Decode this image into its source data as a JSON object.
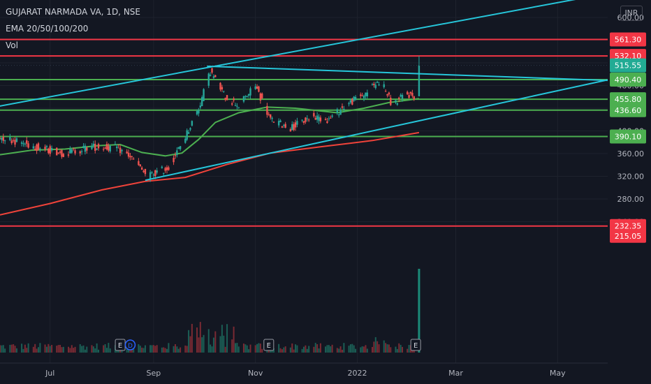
{
  "header": {
    "symbol_line": "GUJARAT NARMADA VA, 1D, NSE",
    "ema_label": "EMA 20/50/100/200",
    "vol_label": "Vol",
    "currency": "INR"
  },
  "chart_data": {
    "type": "candlestick",
    "title": "GUJARAT NARMADA VA, 1D, NSE",
    "start_date": "2021-06-01",
    "end_date": "2022-02-07",
    "x_axis_range": [
      "2021-06-01",
      "2022-05-31"
    ],
    "ylim": [
      212,
      637
    ],
    "y_scale": "linear",
    "grid": true,
    "x_tick_labels": [
      {
        "label": "Jul",
        "date": "2021-07-01"
      },
      {
        "label": "Sep",
        "date": "2021-09-01"
      },
      {
        "label": "Nov",
        "date": "2021-11-01"
      },
      {
        "label": "2022",
        "date": "2022-01-01"
      },
      {
        "label": "Mar",
        "date": "2022-03-01"
      },
      {
        "label": "May",
        "date": "2022-05-01"
      }
    ],
    "y_tick_labels": [
      "600.00",
      "480.00",
      "400.00",
      "360.00",
      "320.00",
      "280.00",
      "240.00"
    ],
    "price_path": [
      {
        "date": "2021-06-01",
        "close": 390
      },
      {
        "date": "2021-06-25",
        "close": 370
      },
      {
        "date": "2021-07-10",
        "close": 360
      },
      {
        "date": "2021-07-25",
        "close": 372
      },
      {
        "date": "2021-08-10",
        "close": 370
      },
      {
        "date": "2021-08-18",
        "close": 355
      },
      {
        "date": "2021-08-28",
        "close": 320
      },
      {
        "date": "2021-09-10",
        "close": 335
      },
      {
        "date": "2021-09-20",
        "close": 390
      },
      {
        "date": "2021-09-28",
        "close": 440
      },
      {
        "date": "2021-10-05",
        "close": 505
      },
      {
        "date": "2021-10-14",
        "close": 460
      },
      {
        "date": "2021-10-22",
        "close": 445
      },
      {
        "date": "2021-11-01",
        "close": 480
      },
      {
        "date": "2021-11-10",
        "close": 420
      },
      {
        "date": "2021-11-22",
        "close": 405
      },
      {
        "date": "2021-12-05",
        "close": 425
      },
      {
        "date": "2021-12-15",
        "close": 420
      },
      {
        "date": "2021-12-25",
        "close": 445
      },
      {
        "date": "2022-01-05",
        "close": 465
      },
      {
        "date": "2022-01-15",
        "close": 490
      },
      {
        "date": "2022-01-22",
        "close": 445
      },
      {
        "date": "2022-01-30",
        "close": 465
      },
      {
        "date": "2022-02-06",
        "close": 460
      },
      {
        "date": "2022-02-07",
        "close": 515.55
      }
    ],
    "last_candle": {
      "date": "2022-02-07",
      "open": 461,
      "close": 515.55,
      "high": 532,
      "low": 511
    },
    "ema_lines": [
      {
        "name": "EMA 50",
        "color": "#4caf50",
        "points": [
          {
            "date": "2021-06-01",
            "value": 358
          },
          {
            "date": "2021-06-20",
            "value": 366
          },
          {
            "date": "2021-07-10",
            "value": 368
          },
          {
            "date": "2021-07-30",
            "value": 374
          },
          {
            "date": "2021-08-12",
            "value": 376
          },
          {
            "date": "2021-08-25",
            "value": 362
          },
          {
            "date": "2021-09-08",
            "value": 356
          },
          {
            "date": "2021-09-18",
            "value": 361
          },
          {
            "date": "2021-09-28",
            "value": 385
          },
          {
            "date": "2021-10-08",
            "value": 415
          },
          {
            "date": "2021-10-22",
            "value": 432
          },
          {
            "date": "2021-11-08",
            "value": 442
          },
          {
            "date": "2021-11-25",
            "value": 440
          },
          {
            "date": "2021-12-20",
            "value": 432
          },
          {
            "date": "2022-01-05",
            "value": 440
          },
          {
            "date": "2022-01-20",
            "value": 450
          },
          {
            "date": "2022-02-07",
            "value": 457
          }
        ]
      },
      {
        "name": "EMA 200",
        "color": "#f0433a",
        "points": [
          {
            "date": "2021-06-01",
            "value": 252
          },
          {
            "date": "2021-07-01",
            "value": 272
          },
          {
            "date": "2021-08-01",
            "value": 296
          },
          {
            "date": "2021-08-27",
            "value": 311
          },
          {
            "date": "2021-09-20",
            "value": 318
          },
          {
            "date": "2021-10-15",
            "value": 341
          },
          {
            "date": "2021-11-10",
            "value": 361
          },
          {
            "date": "2021-12-10",
            "value": 372
          },
          {
            "date": "2022-01-10",
            "value": 383
          },
          {
            "date": "2022-02-07",
            "value": 397
          }
        ]
      }
    ],
    "horizontal_levels": [
      {
        "value": 561.3,
        "color": "#f23645",
        "label": "561.30"
      },
      {
        "value": 532.1,
        "color": "#f23645",
        "label": "532.10"
      },
      {
        "value": 490.4,
        "color": "#4caf50",
        "label": "490.40"
      },
      {
        "value": 455.8,
        "color": "#4caf50",
        "label": "455.80"
      },
      {
        "value": 436.6,
        "color": "#4caf50",
        "label": "436.60"
      },
      {
        "value": 390.1,
        "color": "#4caf50",
        "label": "390.10"
      },
      {
        "value": 232.35,
        "color": "#f23645",
        "label": "232.35"
      }
    ],
    "trend_lines": [
      {
        "name": "channel-upper",
        "color": "#26c6da",
        "from": {
          "date": "2021-05-25",
          "price": 440
        },
        "to": {
          "date": "2022-05-21",
          "price": 637
        }
      },
      {
        "name": "triangle-upper",
        "color": "#26c6da",
        "from": {
          "date": "2021-10-03",
          "price": 514
        },
        "to": {
          "date": "2022-05-31",
          "price": 489
        }
      },
      {
        "name": "triangle-lower",
        "color": "#26c6da",
        "from": {
          "date": "2021-08-27",
          "price": 313
        },
        "to": {
          "date": "2022-05-31",
          "price": 490
        }
      }
    ],
    "price_labels": [
      {
        "text": "561.30",
        "value": 561.3,
        "bg": "#f23645"
      },
      {
        "text": "532.10",
        "value": 532.1,
        "bg": "#f23645"
      },
      {
        "text": "515.55",
        "value": 515.55,
        "bg": "#22ab94"
      },
      {
        "text": "490.40",
        "value": 490.4,
        "bg": "#4caf50"
      },
      {
        "text": "455.80",
        "value": 455.8,
        "bg": "#4caf50"
      },
      {
        "text": "436.60",
        "value": 436.6,
        "bg": "#4caf50"
      },
      {
        "text": "390.10",
        "value": 390.1,
        "bg": "#4caf50"
      },
      {
        "text": "232.35",
        "value": 232.35,
        "bg": "#f23645"
      },
      {
        "text": "215.05",
        "value": 215.05,
        "bg": "#f23645"
      }
    ],
    "earnings_markers": [
      {
        "label": "E",
        "date": "2021-08-12"
      },
      {
        "label": "E",
        "date": "2021-11-09"
      },
      {
        "label": "E",
        "date": "2022-02-05"
      }
    ],
    "dividend_marker": {
      "label": "D",
      "date": "2021-08-18"
    },
    "volume_peak": {
      "date": "2022-02-07",
      "relative": 1.0
    }
  }
}
